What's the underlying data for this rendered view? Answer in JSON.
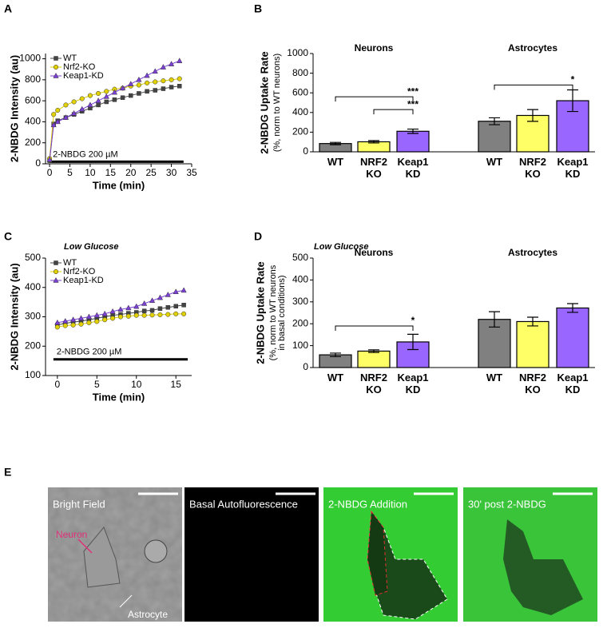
{
  "chart_data": [
    {
      "type": "line",
      "panel": "A",
      "x_label": "Time (min)",
      "y_label": "2-NBDG Intensity (au)",
      "x": [
        0,
        1,
        2,
        4,
        6,
        8,
        10,
        12,
        14,
        16,
        18,
        20,
        22,
        24,
        26,
        28,
        30,
        32
      ],
      "series": [
        {
          "name": "WT",
          "color": "#444444",
          "marker": "square",
          "values": [
            30,
            380,
            410,
            440,
            470,
            500,
            530,
            560,
            590,
            610,
            630,
            650,
            670,
            690,
            700,
            715,
            730,
            740
          ]
        },
        {
          "name": "Nrf2-KO",
          "color": "#e0d000",
          "marker": "circle",
          "values": [
            50,
            470,
            510,
            560,
            590,
            620,
            650,
            670,
            690,
            710,
            720,
            740,
            750,
            770,
            780,
            790,
            800,
            810
          ]
        },
        {
          "name": "Keap1-KD",
          "color": "#7b3fd6",
          "marker": "triangle",
          "values": [
            40,
            370,
            400,
            440,
            480,
            520,
            560,
            600,
            640,
            680,
            720,
            760,
            800,
            840,
            880,
            920,
            950,
            980
          ]
        }
      ],
      "stimulus": {
        "label": "2-NBDG 200 µM",
        "start": 0,
        "end": 33,
        "level": 20
      },
      "xlim": [
        -1,
        35
      ],
      "xticks": [
        0,
        5,
        10,
        15,
        20,
        25,
        30,
        35
      ],
      "ylim": [
        0,
        1050
      ],
      "yticks": [
        0,
        200,
        400,
        600,
        800,
        1000
      ]
    },
    {
      "type": "bar",
      "panel": "B",
      "y_label": "2-NBDG Uptake Rate",
      "y_sublabel": [
        "(%, norm to WT neurons)"
      ],
      "colors": [
        "#808080",
        "#ffff66",
        "#9966ff"
      ],
      "groups": [
        {
          "name": "Neurons",
          "categories": [
            "WT",
            "NRF2 KO",
            "Keap1 KD"
          ],
          "values": [
            84,
            102,
            209
          ],
          "errors": [
            12,
            12,
            22
          ]
        },
        {
          "name": "Astrocytes",
          "categories": [
            "WT",
            "NRF2 KO",
            "Keap1 KD"
          ],
          "values": [
            311,
            370,
            520
          ],
          "errors": [
            35,
            60,
            110
          ]
        }
      ],
      "brackets": [
        {
          "group": 0,
          "from": 0,
          "to": 2,
          "level": 560,
          "label": "***"
        },
        {
          "group": 0,
          "from": 1,
          "to": 2,
          "level": 430,
          "label": "***"
        },
        {
          "group": 1,
          "from": 0,
          "to": 2,
          "level": 680,
          "label": "*"
        }
      ],
      "ylim": [
        0,
        1000
      ],
      "yticks": [
        0,
        200,
        400,
        600,
        800,
        1000
      ]
    },
    {
      "type": "line",
      "panel": "C",
      "subtitle": "Low Glucose",
      "x_label": "Time (min)",
      "y_label": "2-NBDG Intensity (au)",
      "x": [
        0,
        1,
        2,
        3,
        4,
        5,
        6,
        7,
        8,
        9,
        10,
        11,
        12,
        13,
        14,
        15,
        16
      ],
      "series": [
        {
          "name": "WT",
          "color": "#444444",
          "marker": "square",
          "values": [
            272,
            278,
            282,
            285,
            290,
            295,
            300,
            305,
            308,
            312,
            315,
            320,
            322,
            328,
            332,
            336,
            340
          ]
        },
        {
          "name": "Nrf2-KO",
          "color": "#e0d000",
          "marker": "circle",
          "values": [
            265,
            270,
            272,
            275,
            280,
            284,
            290,
            295,
            300,
            302,
            305,
            305,
            306,
            307,
            308,
            310,
            310
          ]
        },
        {
          "name": "Keap1-KD",
          "color": "#7b3fd6",
          "marker": "triangle",
          "values": [
            280,
            285,
            290,
            295,
            300,
            305,
            310,
            318,
            325,
            330,
            335,
            345,
            355,
            365,
            375,
            385,
            390
          ]
        }
      ],
      "stimulus": {
        "label": "2-NBDG 200 µM",
        "start": -0.5,
        "end": 16.5,
        "level": 155
      },
      "xlim": [
        -1.5,
        17
      ],
      "xticks": [
        0,
        5,
        10,
        15
      ],
      "ylim": [
        100,
        500
      ],
      "yticks": [
        100,
        200,
        300,
        400,
        500
      ]
    },
    {
      "type": "bar",
      "panel": "D",
      "subtitle": "Low Glucose",
      "y_label": "2-NBDG Uptake Rate",
      "y_sublabel": [
        "(%, norm to WT neurons",
        "in basal conditions)"
      ],
      "colors": [
        "#808080",
        "#ffff66",
        "#9966ff"
      ],
      "groups": [
        {
          "name": "Neurons",
          "categories": [
            "WT",
            "NRF2 KO",
            "Keap1 KD"
          ],
          "values": [
            58,
            75,
            117
          ],
          "errors": [
            8,
            6,
            35
          ]
        },
        {
          "name": "Astrocytes",
          "categories": [
            "WT",
            "NRF2 KO",
            "Keap1 KD"
          ],
          "values": [
            220,
            210,
            272
          ],
          "errors": [
            35,
            20,
            20
          ]
        }
      ],
      "brackets": [
        {
          "group": 0,
          "from": 0,
          "to": 2,
          "level": 190,
          "label": "*"
        }
      ],
      "ylim": [
        0,
        500
      ],
      "yticks": [
        0,
        100,
        200,
        300,
        400,
        500
      ]
    }
  ],
  "panel_e": {
    "label": "E",
    "images": [
      "Bright Field",
      "Basal Autofluorescence",
      "2-NBDG Addition",
      "30' post 2-NBDG"
    ],
    "neuron": "Neuron",
    "astrocyte": "Astrocyte"
  }
}
